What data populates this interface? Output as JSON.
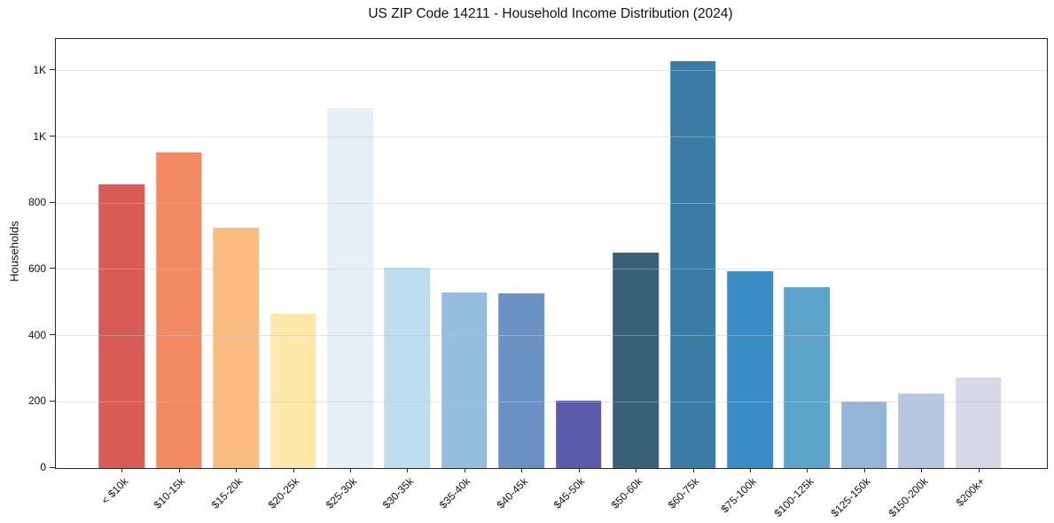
{
  "chart_data": {
    "type": "bar",
    "title": "US ZIP Code 14211 - Household Income Distribution (2024)",
    "xlabel": "",
    "ylabel": "Households",
    "categories": [
      "< $10k",
      "$10-15k",
      "$15-20k",
      "$20-25k",
      "$25-30k",
      "$30-35k",
      "$35-40k",
      "$40-45k",
      "$45-50k",
      "$50-60k",
      "$60-75k",
      "$75-100k",
      "$100-125k",
      "$125-150k",
      "$150-200k",
      "$200k+"
    ],
    "values": [
      858,
      954,
      727,
      467,
      1088,
      605,
      531,
      527,
      204,
      651,
      1230,
      594,
      545,
      201,
      224,
      274
    ],
    "bar_colors": [
      "#d65c55",
      "#f48a63",
      "#fbbc80",
      "#fde7a9",
      "#e5f1f6",
      "#bcdeee",
      "#93bedd",
      "#6a92c5",
      "#5a5cab",
      "#386076",
      "#3a7ca5",
      "#3a8dc4",
      "#5ca4c9",
      "#93b6d8",
      "#b8c7e0",
      "#d6d8e6"
    ],
    "ylim": [
      0,
      1296
    ],
    "yticks": {
      "values": [
        0,
        200,
        400,
        600,
        800,
        1000,
        1200
      ],
      "labels": [
        "0",
        "200",
        "400",
        "600",
        "800",
        "1K",
        "1K"
      ]
    },
    "grid": "horizontal",
    "legend": "none",
    "x_tick_rotation_deg": 45,
    "background_color": "#ffffff",
    "spine_color": "#2a2a2a",
    "gridline_color": "#e8ecef"
  }
}
